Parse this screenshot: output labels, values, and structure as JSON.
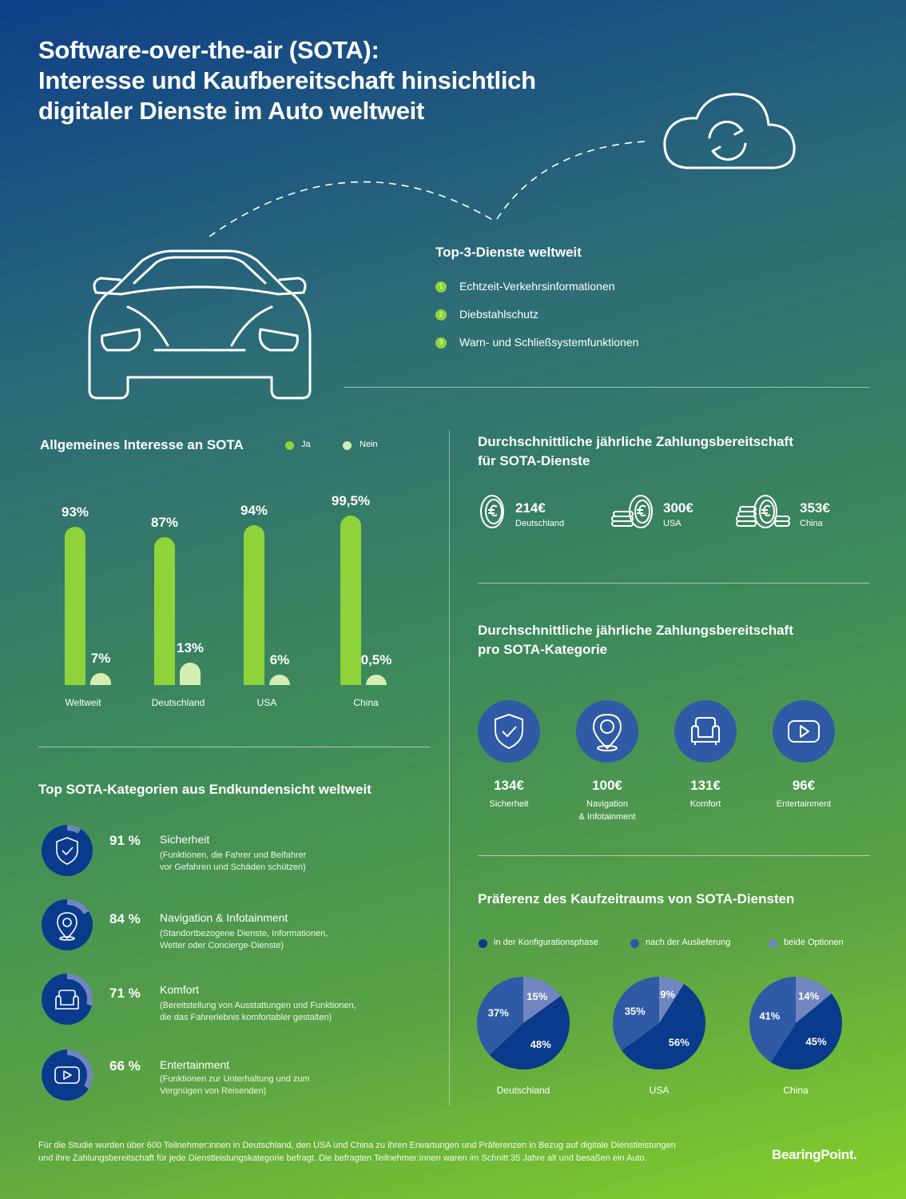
{
  "title": {
    "line1": "Software-over-the-air (SOTA):",
    "line2": "Interesse und Kaufbereitschaft hinsichtlich",
    "line3": "digitaler Dienste im Auto weltweit"
  },
  "top3": {
    "heading": "Top-3-Dienste weltweit",
    "items": [
      {
        "num": "1",
        "label": "Echtzeit-Verkehrsinformationen"
      },
      {
        "num": "2",
        "label": "Diebstahlschutz"
      },
      {
        "num": "3",
        "label": "Warn- und Schließsystemfunktionen"
      }
    ]
  },
  "interest": {
    "heading": "Allgemeines Interesse an SOTA",
    "legend_yes": "Ja",
    "legend_no": "Nein",
    "colors": {
      "yes": "#8fd33a",
      "no": "#d4eeb2"
    }
  },
  "spend": {
    "heading_line1": "Durchschnittliche jährliche Zahlungsbereitschaft",
    "heading_line2": "für SOTA-Dienste",
    "items": [
      {
        "value": "214€",
        "country": "Deutschland",
        "icon": "single-coin-icon"
      },
      {
        "value": "300€",
        "country": "USA",
        "icon": "coin-stack-icon"
      },
      {
        "value": "353€",
        "country": "China",
        "icon": "coin-stacks-icon"
      }
    ]
  },
  "category_spend": {
    "heading_line1": "Durchschnittliche jährliche Zahlungsbereitschaft",
    "heading_line2": "pro SOTA-Kategorie",
    "items": [
      {
        "value": "134€",
        "label": "Sicherheit",
        "label2": "",
        "icon": "shield-icon"
      },
      {
        "value": "100€",
        "label": "Navigation",
        "label2": "& Infotainment",
        "icon": "location-pin-icon"
      },
      {
        "value": "131€",
        "label": "Komfort",
        "label2": "",
        "icon": "armchair-icon"
      },
      {
        "value": "96€",
        "label": "Entertainment",
        "label2": "",
        "icon": "play-icon"
      }
    ]
  },
  "top_categories": {
    "heading": "Top SOTA-Kategorien aus Endkundensicht weltweit",
    "items": [
      {
        "pct": "91 %",
        "value": 91,
        "name": "Sicherheit",
        "desc1": "(Funktionen, die Fahrer und Beifahrer",
        "desc2": "vor Gefahren und Schäden schützen)",
        "icon": "shield-icon"
      },
      {
        "pct": "84 %",
        "value": 84,
        "name": "Navigation & Infotainment",
        "desc1": "(Standortbezogene Dienste, Informationen,",
        "desc2": "Wetter oder Concierge-Dienste)",
        "icon": "location-pin-icon"
      },
      {
        "pct": "71 %",
        "value": 71,
        "name": "Komfort",
        "desc1": "(Bereitstellung von Ausstattungen und Funktionen,",
        "desc2": "die das Fahrerlebnis komfortabler gestalten)",
        "icon": "armchair-icon"
      },
      {
        "pct": "66 %",
        "value": 66,
        "name": "Entertainment",
        "desc1": "(Funktionen zur Unterhaltung und zum",
        "desc2": "Vergnügen von Reisenden)",
        "icon": "play-icon"
      }
    ]
  },
  "preference": {
    "heading": "Präferenz des Kaufzeitraums von SOTA-Diensten",
    "legend": [
      {
        "label": "in der Konfigurationsphase",
        "color": "#0a3a8c"
      },
      {
        "label": "nach der Auslieferung",
        "color": "#2f5aa5"
      },
      {
        "label": "beide Optionen",
        "color": "#7186c0"
      }
    ]
  },
  "footer": {
    "line1": "Für die Studie wurden über 600 Teilnehmer:innen in Deutschland, den USA und China zu ihren Erwartungen und Präferenzen in Bezug auf digitale Dienstleistungen",
    "line2": "und ihre Zahlungsbereitschaft für jede Dienstleistungskategorie befragt. Die befragten Teilnehmer:innen waren im Schnitt 35 Jahre alt und besaßen ein Auto.",
    "brand": "BearingPoint."
  },
  "chart_data": [
    {
      "type": "bar",
      "title": "Allgemeines Interesse an SOTA",
      "categories": [
        "Weltweit",
        "Deutschland",
        "USA",
        "China"
      ],
      "series": [
        {
          "name": "Ja",
          "values": [
            93,
            87,
            94,
            99.5
          ],
          "labels": [
            "93%",
            "87%",
            "94%",
            "99,5%"
          ]
        },
        {
          "name": "Nein",
          "values": [
            7,
            13,
            6,
            0.5
          ],
          "labels": [
            "7%",
            "13%",
            "6%",
            "0,5%"
          ]
        }
      ],
      "ylim": [
        0,
        100
      ]
    },
    {
      "type": "pie",
      "title": "Präferenz des Kaufzeitraums von SOTA-Diensten",
      "series_names": [
        "in der Konfigurationsphase",
        "nach der Auslieferung",
        "beide Optionen"
      ],
      "pies": [
        {
          "name": "Deutschland",
          "values": [
            48,
            37,
            15
          ],
          "labels": [
            "48%",
            "37%",
            "15%"
          ]
        },
        {
          "name": "USA",
          "values": [
            56,
            35,
            9
          ],
          "labels": [
            "56%",
            "35%",
            "9%"
          ]
        },
        {
          "name": "China",
          "values": [
            45,
            41,
            14
          ],
          "labels": [
            "45%",
            "41%",
            "14%"
          ]
        }
      ]
    }
  ]
}
